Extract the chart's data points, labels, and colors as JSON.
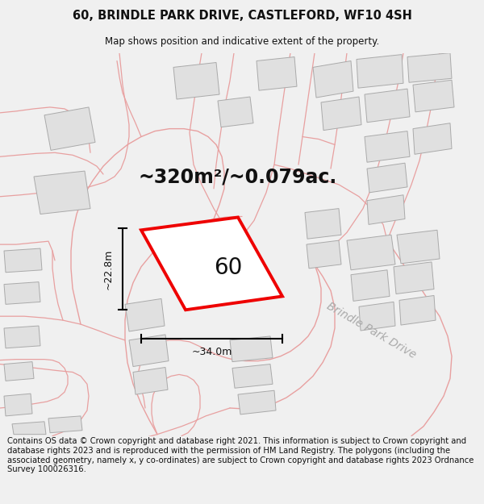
{
  "title": "60, BRINDLE PARK DRIVE, CASTLEFORD, WF10 4SH",
  "subtitle": "Map shows position and indicative extent of the property.",
  "footer": "Contains OS data © Crown copyright and database right 2021. This information is subject to Crown copyright and database rights 2023 and is reproduced with the permission of HM Land Registry. The polygons (including the associated geometry, namely x, y co-ordinates) are subject to Crown copyright and database rights 2023 Ordnance Survey 100026316.",
  "area_label": "~320m²/~0.079ac.",
  "number_label": "60",
  "dim_width": "~34.0m",
  "dim_height": "~22.8m",
  "road_label": "Brindle Park Drive",
  "bg_color": "#f0f0f0",
  "map_bg": "#ffffff",
  "building_fill": "#e0e0e0",
  "building_edge": "#aaaaaa",
  "road_line_color": "#e8a0a0",
  "highlight_color": "#ee0000",
  "title_fontsize": 10.5,
  "subtitle_fontsize": 8.5,
  "footer_fontsize": 7.2,
  "area_fontsize": 17,
  "number_fontsize": 20,
  "road_fontsize": 10
}
